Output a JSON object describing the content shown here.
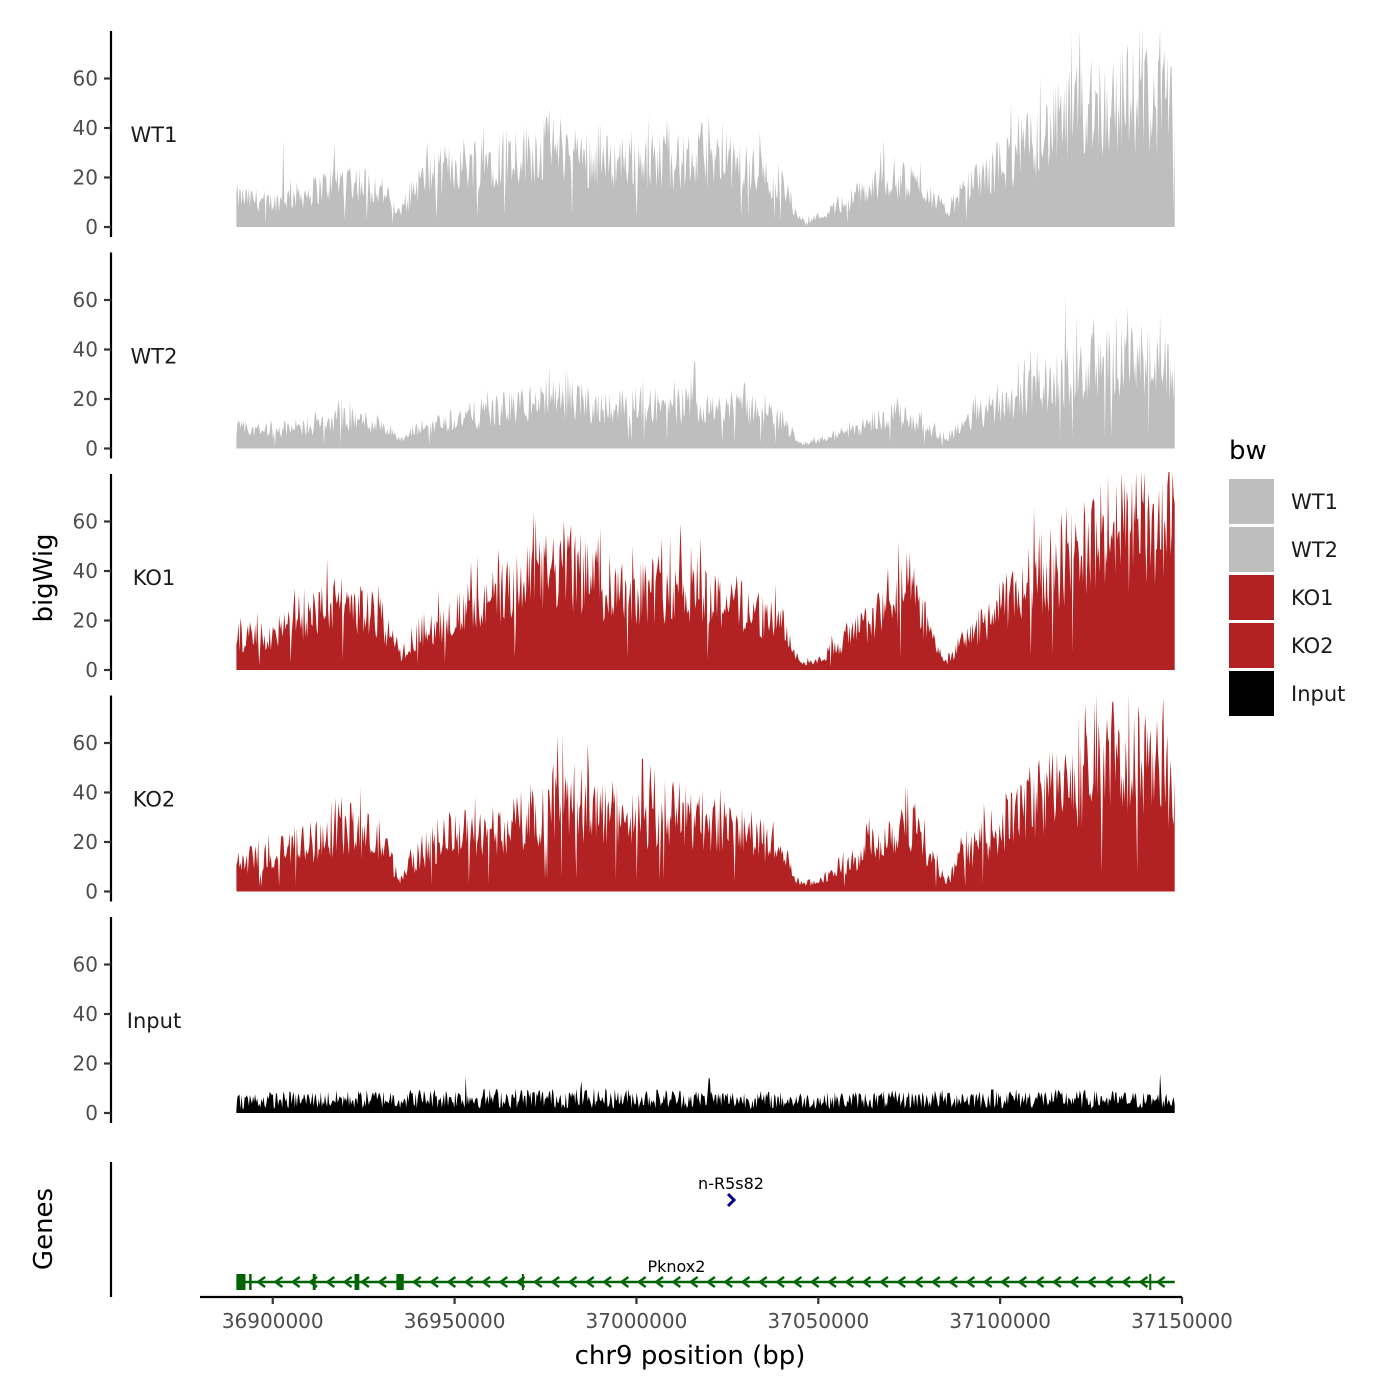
{
  "chart_data": {
    "type": "area",
    "xlabel": "chr9 position (bp)",
    "ylabel": "bigWig",
    "genes_label": "Genes",
    "xlim": [
      36880000,
      37150000
    ],
    "x_ticks": [
      36900000,
      36950000,
      37000000,
      37050000,
      37100000,
      37150000
    ],
    "x_tick_labels": [
      "36900000",
      "36950000",
      "37000000",
      "37050000",
      "37100000",
      "37150000"
    ],
    "ylim": [
      0,
      80
    ],
    "y_ticks": [
      0,
      20,
      40,
      60
    ],
    "y_tick_labels": [
      "0",
      "20",
      "40",
      "60"
    ],
    "data_range": [
      36890000,
      37148000
    ],
    "legend": {
      "title": "bw",
      "position": "right",
      "items": [
        {
          "label": "WT1",
          "color": "#bebebe"
        },
        {
          "label": "WT2",
          "color": "#bebebe"
        },
        {
          "label": "KO1",
          "color": "#b22222"
        },
        {
          "label": "KO2",
          "color": "#b22222"
        },
        {
          "label": "Input",
          "color": "#000000"
        }
      ]
    },
    "tracks": [
      {
        "name": "WT1",
        "color": "#bebebe",
        "x": [
          36890000,
          36900000,
          36910000,
          36920000,
          36930000,
          36935000,
          36940000,
          36950000,
          36960000,
          36970000,
          36980000,
          36990000,
          37000000,
          37010000,
          37020000,
          37030000,
          37040000,
          37045000,
          37050000,
          37060000,
          37070000,
          37080000,
          37085000,
          37090000,
          37100000,
          37110000,
          37120000,
          37130000,
          37140000,
          37148000
        ],
        "values": [
          12,
          10,
          14,
          20,
          15,
          5,
          18,
          25,
          28,
          30,
          32,
          26,
          28,
          26,
          27,
          24,
          18,
          3,
          4,
          12,
          20,
          15,
          6,
          14,
          25,
          35,
          45,
          50,
          52,
          45
        ],
        "peaks": [
          [
            36903000,
            35
          ],
          [
            36917000,
            34
          ],
          [
            36976000,
            48
          ],
          [
            36990000,
            42
          ],
          [
            37018000,
            42
          ],
          [
            37068000,
            36
          ],
          [
            37105000,
            46
          ],
          [
            37125000,
            68
          ],
          [
            37135000,
            74
          ],
          [
            37140000,
            70
          ],
          [
            37146000,
            68
          ]
        ]
      },
      {
        "name": "WT2",
        "color": "#bebebe",
        "x": [
          36890000,
          36900000,
          36910000,
          36920000,
          36930000,
          36935000,
          36940000,
          36950000,
          36960000,
          36970000,
          36980000,
          36990000,
          37000000,
          37010000,
          37020000,
          37030000,
          37040000,
          37045000,
          37050000,
          37060000,
          37070000,
          37080000,
          37085000,
          37090000,
          37100000,
          37110000,
          37120000,
          37130000,
          37140000,
          37148000
        ],
        "values": [
          8,
          7,
          9,
          12,
          10,
          3,
          8,
          12,
          15,
          18,
          20,
          17,
          18,
          17,
          18,
          16,
          12,
          2,
          3,
          8,
          14,
          10,
          4,
          10,
          18,
          24,
          30,
          34,
          35,
          28
        ],
        "peaks": [
          [
            36976000,
            33
          ],
          [
            37016000,
            35
          ],
          [
            37105000,
            36
          ],
          [
            37118000,
            62
          ],
          [
            37132000,
            55
          ],
          [
            37144000,
            54
          ]
        ]
      },
      {
        "name": "KO1",
        "color": "#b22222",
        "x": [
          36890000,
          36900000,
          36910000,
          36920000,
          36930000,
          36935000,
          36940000,
          36950000,
          36960000,
          36970000,
          36980000,
          36990000,
          37000000,
          37010000,
          37020000,
          37030000,
          37040000,
          37045000,
          37050000,
          37060000,
          37070000,
          37075000,
          37080000,
          37085000,
          37090000,
          37100000,
          37110000,
          37120000,
          37130000,
          37140000,
          37148000
        ],
        "values": [
          12,
          14,
          22,
          28,
          20,
          5,
          15,
          22,
          28,
          35,
          42,
          35,
          32,
          34,
          30,
          26,
          18,
          3,
          4,
          15,
          26,
          34,
          18,
          3,
          12,
          25,
          38,
          48,
          55,
          56,
          50
        ],
        "peaks": [
          [
            36915000,
            45
          ],
          [
            36986000,
            53
          ],
          [
            37015000,
            50
          ],
          [
            37072000,
            52
          ],
          [
            37135000,
            68
          ]
        ]
      },
      {
        "name": "KO2",
        "color": "#b22222",
        "x": [
          36890000,
          36900000,
          36910000,
          36920000,
          36930000,
          36935000,
          36940000,
          36950000,
          36960000,
          36970000,
          36980000,
          36990000,
          37000000,
          37010000,
          37020000,
          37030000,
          37040000,
          37045000,
          37050000,
          37060000,
          37070000,
          37075000,
          37080000,
          37085000,
          37090000,
          37100000,
          37110000,
          37120000,
          37130000,
          37140000,
          37148000
        ],
        "values": [
          12,
          14,
          20,
          26,
          20,
          5,
          15,
          24,
          22,
          30,
          38,
          32,
          30,
          32,
          28,
          24,
          16,
          3,
          4,
          14,
          24,
          30,
          16,
          3,
          14,
          26,
          38,
          45,
          50,
          50,
          45
        ],
        "peaks": [
          [
            36987000,
            48
          ],
          [
            37005000,
            50
          ],
          [
            37120000,
            56
          ],
          [
            37138000,
            75
          ]
        ]
      },
      {
        "name": "Input",
        "color": "#000000",
        "x": [
          36890000,
          36950000,
          37000000,
          37050000,
          37100000,
          37148000
        ],
        "values": [
          5,
          6,
          6,
          5,
          6,
          5
        ],
        "peaks": [
          [
            36953000,
            15
          ],
          [
            36985000,
            13
          ],
          [
            37020000,
            14
          ],
          [
            37144000,
            16
          ]
        ]
      }
    ],
    "genes": [
      {
        "name": "n-R5s82",
        "start": 37025500,
        "end": 37026500,
        "strand": "+",
        "color": "#00008b"
      },
      {
        "name": "Pknox2",
        "start": 36890000,
        "end": 37148000,
        "strand": "-",
        "color": "#006400",
        "exons": [
          [
            36890000,
            36892500
          ],
          [
            36893500,
            36894200
          ],
          [
            36911000,
            36911800
          ],
          [
            36922500,
            36923800
          ],
          [
            36934000,
            36936000
          ],
          [
            36968500,
            36969000
          ],
          [
            37141000,
            37141500
          ]
        ]
      }
    ]
  }
}
